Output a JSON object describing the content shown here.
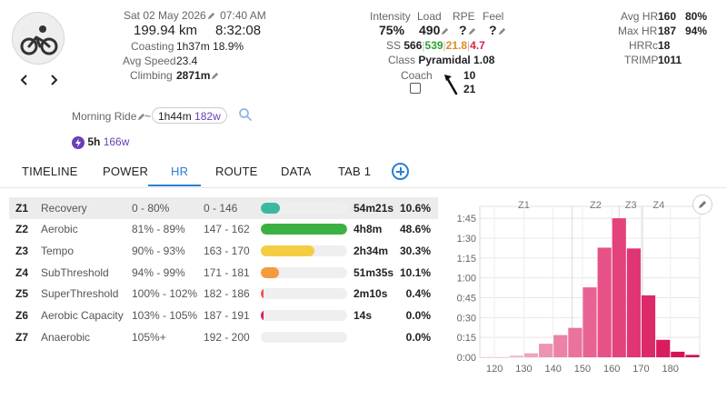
{
  "activity": {
    "date": "Sat 02 May 2026",
    "time": "07:40 AM",
    "distance": "199.94 km",
    "duration": "8:32:08",
    "coasting_label": "Coasting",
    "coasting_value": "1h37m 18.9%",
    "avg_speed_label": "Avg Speed",
    "avg_speed_value": "23.4",
    "climbing_label": "Climbing",
    "climbing_value": "2871m",
    "icon": "bicycle-icon"
  },
  "metrics": {
    "intensity_label": "Intensity",
    "intensity_value": "75%",
    "load_label": "Load",
    "load_value": "490",
    "rpe_label": "RPE",
    "rpe_value": "?",
    "feel_label": "Feel",
    "feel_value": "?",
    "ss_label": "SS",
    "ss_values": [
      "566",
      "539",
      "21.8",
      "4.7"
    ],
    "ss_colors": [
      "#222222",
      "#2e9e2e",
      "#e08a1e",
      "#d6204f"
    ],
    "class_label": "Class",
    "class_value": "Pyramidal 1.08",
    "coach_label": "Coach",
    "arrow_value_top": "10",
    "arrow_value_bottom": "21"
  },
  "hr_stats": {
    "avg_hr_label": "Avg HR",
    "avg_hr_value": "160",
    "avg_hr_pct": "80%",
    "max_hr_label": "Max HR",
    "max_hr_value": "187",
    "max_hr_pct": "94%",
    "hrrc_label": "HRRc",
    "hrrc_value": "18",
    "trimp_label": "TRIMP",
    "trimp_value": "1011"
  },
  "ride": {
    "name": "Morning Ride",
    "tilde": "~",
    "pill_time": "1h44m",
    "pill_watts": "182w",
    "summary_time": "5h",
    "summary_watts": "166w"
  },
  "tabs": [
    "TIMELINE",
    "POWER",
    "HR",
    "ROUTE",
    "DATA",
    "TAB 1"
  ],
  "active_tab": "HR",
  "zones": [
    {
      "id": "Z1",
      "name": "Recovery",
      "pct": "0 - 80%",
      "bpm": "0 - 146",
      "time": "54m21s",
      "percent": "10.6%",
      "fill": 0.22,
      "color": "#3db8a0"
    },
    {
      "id": "Z2",
      "name": "Aerobic",
      "pct": "81% - 89%",
      "bpm": "147 - 162",
      "time": "4h8m",
      "percent": "48.6%",
      "fill": 1.0,
      "color": "#3cb043"
    },
    {
      "id": "Z3",
      "name": "Tempo",
      "pct": "90% - 93%",
      "bpm": "163 - 170",
      "time": "2h34m",
      "percent": "30.3%",
      "fill": 0.62,
      "color": "#f5cd43"
    },
    {
      "id": "Z4",
      "name": "SubThreshold",
      "pct": "94% - 99%",
      "bpm": "171 - 181",
      "time": "51m35s",
      "percent": "10.1%",
      "fill": 0.21,
      "color": "#f59a3d"
    },
    {
      "id": "Z5",
      "name": "SuperThreshold",
      "pct": "100% - 102%",
      "bpm": "182 - 186",
      "time": "2m10s",
      "percent": "0.4%",
      "fill": 0.02,
      "color": "#ee5555"
    },
    {
      "id": "Z6",
      "name": "Aerobic Capacity",
      "pct": "103% - 105%",
      "bpm": "187 - 191",
      "time": "14s",
      "percent": "0.0%",
      "fill": 0.02,
      "color": "#d6204f"
    },
    {
      "id": "Z7",
      "name": "Anaerobic",
      "pct": "105%+",
      "bpm": "192 - 200",
      "time": "",
      "percent": "0.0%",
      "fill": 0.0,
      "color": "#9a1a40"
    }
  ],
  "chart_data": {
    "type": "bar",
    "x": [
      117.5,
      122.5,
      127.5,
      132.5,
      137.5,
      142.5,
      147.5,
      152.5,
      157.5,
      162.5,
      167.5,
      172.5,
      177.5,
      182.5,
      187.5
    ],
    "values": [
      0.0,
      0.0,
      0.02,
      0.05,
      0.17,
      0.28,
      0.37,
      0.88,
      1.38,
      1.75,
      1.37,
      0.78,
      0.22,
      0.07,
      0.03
    ],
    "bar_colors": [
      "#f4c0d2",
      "#f4c0d2",
      "#f3b3c9",
      "#f0a3bf",
      "#ee93b4",
      "#ec82a8",
      "#ea729d",
      "#e86293",
      "#e65288",
      "#e3427d",
      "#e03574",
      "#dd286a",
      "#da1b60",
      "#d71257",
      "#d30a4f"
    ],
    "xticks": [
      120,
      130,
      140,
      150,
      160,
      170,
      180
    ],
    "xlim": [
      115,
      190
    ],
    "yticks_labels": [
      "0:00",
      "0:15",
      "0:30",
      "0:45",
      "1:00",
      "1:15",
      "1:30",
      "1:45"
    ],
    "yticks_hours": [
      0,
      0.25,
      0.5,
      0.75,
      1.0,
      1.25,
      1.5,
      1.75
    ],
    "ylim": [
      0,
      1.9
    ],
    "zone_lines": [
      {
        "label": "Z1",
        "x": 115
      },
      {
        "label": "Z2",
        "x": 146.5
      },
      {
        "label": "Z3",
        "x": 162.5
      },
      {
        "label": "Z4",
        "x": 170.5
      }
    ],
    "zone_label_positions": [
      {
        "label": "Z1",
        "x": 130
      },
      {
        "label": "Z2",
        "x": 154.5
      },
      {
        "label": "Z3",
        "x": 166.5
      },
      {
        "label": "Z4",
        "x": 176
      }
    ],
    "grid": true
  }
}
